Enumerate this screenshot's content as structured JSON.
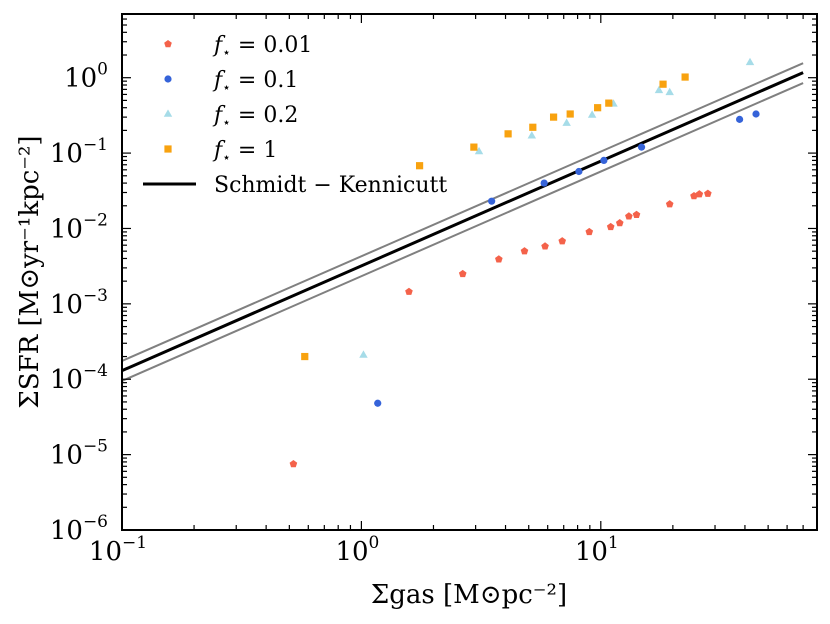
{
  "chart_data": {
    "type": "scatter",
    "xscale": "log",
    "yscale": "log",
    "xlim": [
      0.1,
      80
    ],
    "ylim": [
      1e-06,
      7
    ],
    "xlabel": "Σgas [M⊙pc⁻²]",
    "ylabel": "ΣSFR [M⊙yr⁻¹kpc⁻²]",
    "x_ticks": [
      {
        "value": 0.1,
        "base": "10",
        "exp": "−1"
      },
      {
        "value": 1,
        "base": "10",
        "exp": "0"
      },
      {
        "value": 10,
        "base": "10",
        "exp": "1"
      }
    ],
    "y_ticks": [
      {
        "value": 1e-06,
        "base": "10",
        "exp": "−6"
      },
      {
        "value": 1e-05,
        "base": "10",
        "exp": "−5"
      },
      {
        "value": 0.0001,
        "base": "10",
        "exp": "−4"
      },
      {
        "value": 0.001,
        "base": "10",
        "exp": "−3"
      },
      {
        "value": 0.01,
        "base": "10",
        "exp": "−2"
      },
      {
        "value": 0.1,
        "base": "10",
        "exp": "−1"
      },
      {
        "value": 1,
        "base": "10",
        "exp": "0"
      }
    ],
    "series": [
      {
        "name": "f⋆ = 0.01",
        "label_sym": "f",
        "label_sub": "⋆",
        "label_val": " = 0.01",
        "marker": "pentagon",
        "color": "#f4624a",
        "points": [
          [
            0.52,
            7.5e-06
          ],
          [
            1.58,
            0.00145
          ],
          [
            2.65,
            0.0025
          ],
          [
            3.75,
            0.0039
          ],
          [
            4.8,
            0.005
          ],
          [
            5.85,
            0.0058
          ],
          [
            6.9,
            0.0068
          ],
          [
            8.95,
            0.009
          ],
          [
            11.0,
            0.0105
          ],
          [
            12.0,
            0.0118
          ],
          [
            13.1,
            0.0145
          ],
          [
            14.1,
            0.0152
          ],
          [
            19.4,
            0.021
          ],
          [
            24.5,
            0.027
          ],
          [
            25.8,
            0.0285
          ],
          [
            28.0,
            0.029
          ]
        ]
      },
      {
        "name": "f⋆ = 0.1",
        "label_sym": "f",
        "label_sub": "⋆",
        "label_val": " = 0.1",
        "marker": "circle",
        "color": "#3563d9",
        "points": [
          [
            1.17,
            4.8e-05
          ],
          [
            3.5,
            0.023
          ],
          [
            5.8,
            0.04
          ],
          [
            8.1,
            0.057
          ],
          [
            10.3,
            0.08
          ],
          [
            14.8,
            0.12
          ],
          [
            38.0,
            0.28
          ],
          [
            44.5,
            0.33
          ]
        ]
      },
      {
        "name": "f⋆ = 0.2",
        "label_sym": "f",
        "label_sub": "⋆",
        "label_val": " = 0.2",
        "marker": "triangle",
        "color": "#a6dce8",
        "points": [
          [
            1.02,
            0.00021
          ],
          [
            3.1,
            0.105
          ],
          [
            5.15,
            0.17
          ],
          [
            7.2,
            0.25
          ],
          [
            9.2,
            0.32
          ],
          [
            11.3,
            0.45
          ],
          [
            17.5,
            0.68
          ],
          [
            19.4,
            0.64
          ],
          [
            42.0,
            1.6
          ]
        ]
      },
      {
        "name": "f⋆ = 1",
        "label_sym": "f",
        "label_sub": "⋆",
        "label_val": " = 1",
        "marker": "square",
        "color": "#f8a20f",
        "points": [
          [
            0.58,
            0.0002
          ],
          [
            1.75,
            0.068
          ],
          [
            2.95,
            0.12
          ],
          [
            4.1,
            0.18
          ],
          [
            5.2,
            0.22
          ],
          [
            6.35,
            0.3
          ],
          [
            7.45,
            0.33
          ],
          [
            9.7,
            0.4
          ],
          [
            10.8,
            0.46
          ],
          [
            18.2,
            0.82
          ],
          [
            22.5,
            1.02
          ]
        ]
      }
    ],
    "lines": [
      {
        "name": "Schmidt − Kennicutt",
        "label": "Schmidt − Kennicutt",
        "color": "#000000",
        "x": [
          0.1,
          70
        ],
        "y": [
          0.00013,
          1.17
        ],
        "in_legend": true
      },
      {
        "name": "Schmidt − Kennicutt upper bound",
        "color": "#808080",
        "x": [
          0.1,
          70
        ],
        "y": [
          0.000175,
          1.56
        ],
        "in_legend": false
      },
      {
        "name": "Schmidt − Kennicutt lower bound",
        "color": "#808080",
        "x": [
          0.1,
          70
        ],
        "y": [
          9.5e-05,
          0.85
        ],
        "in_legend": false
      }
    ],
    "legend_position": "upper-left"
  }
}
